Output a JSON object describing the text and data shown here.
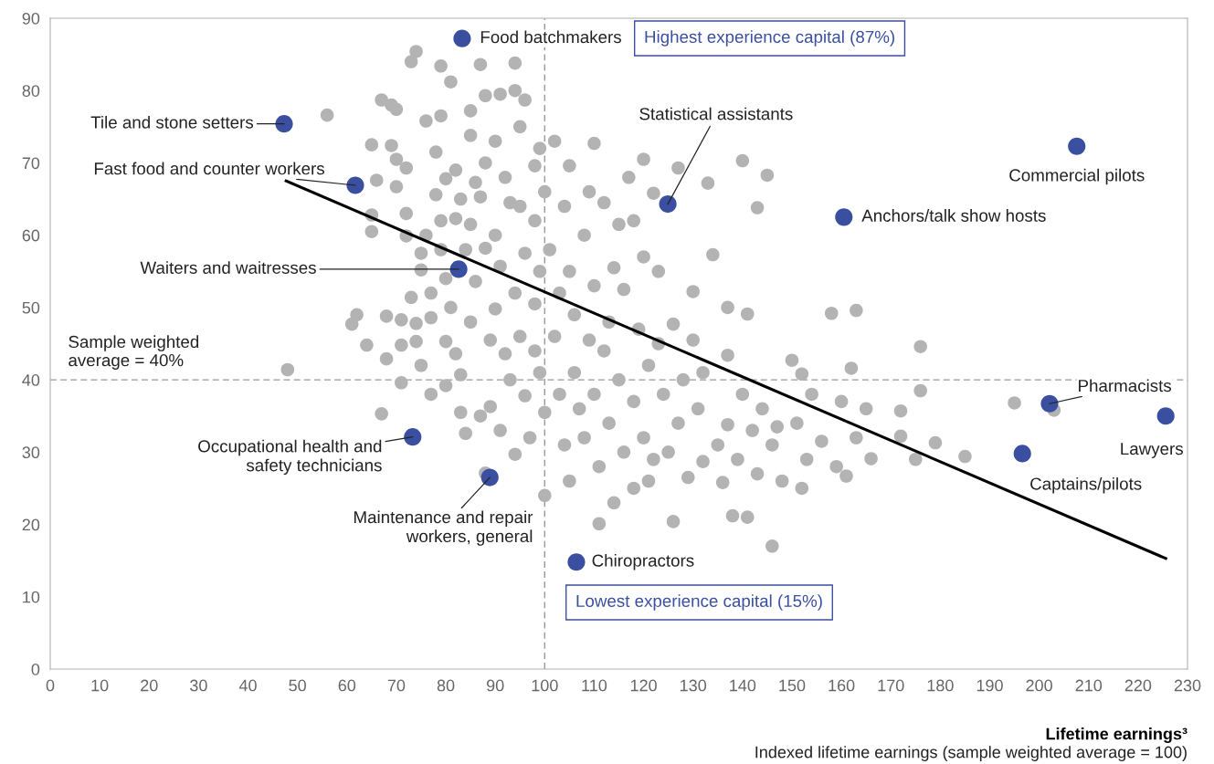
{
  "chart_data": {
    "type": "scatter",
    "xlabel": "Lifetime earnings³",
    "xlim": [
      0,
      230
    ],
    "xticks": [
      0,
      10,
      20,
      30,
      40,
      50,
      60,
      70,
      80,
      90,
      100,
      110,
      120,
      130,
      140,
      150,
      160,
      170,
      180,
      190,
      200,
      210,
      220,
      230
    ],
    "ylim": [
      0,
      90
    ],
    "yticks": [
      0,
      10,
      20,
      30,
      40,
      50,
      60,
      70,
      80,
      90
    ],
    "grid": false,
    "marker": "circle",
    "series": [
      {
        "color": "#b3b3b3",
        "x": [
          48,
          56,
          61,
          62,
          64,
          65,
          65,
          65,
          66,
          67,
          67,
          68,
          68,
          69,
          69,
          70,
          70,
          70,
          71,
          71,
          71,
          72,
          72,
          72,
          73,
          73,
          74,
          74,
          74,
          75,
          75,
          75,
          76,
          76,
          77,
          77,
          77,
          78,
          78,
          79,
          79,
          79,
          79,
          80,
          80,
          80,
          80,
          81,
          81,
          82,
          82,
          82,
          83,
          83,
          83,
          84,
          84,
          85,
          85,
          85,
          85,
          86,
          86,
          87,
          87,
          87,
          88,
          88,
          88,
          88,
          89,
          89,
          90,
          90,
          90,
          91,
          91,
          91,
          92,
          92,
          93,
          93,
          94,
          94,
          94,
          94,
          95,
          95,
          95,
          96,
          96,
          96,
          97,
          98,
          98,
          98,
          98,
          99,
          99,
          99,
          100,
          100,
          100,
          101,
          102,
          102,
          103,
          103,
          104,
          104,
          105,
          105,
          105,
          106,
          106,
          107,
          108,
          108,
          109,
          109,
          110,
          110,
          110,
          111,
          111,
          112,
          112,
          113,
          113,
          114,
          114,
          115,
          115,
          116,
          116,
          117,
          118,
          118,
          118,
          119,
          120,
          120,
          120,
          121,
          121,
          122,
          122,
          123,
          123,
          124,
          125,
          126,
          126,
          127,
          127,
          128,
          129,
          130,
          130,
          131,
          132,
          132,
          133,
          134,
          135,
          136,
          137,
          137,
          137,
          138,
          139,
          140,
          140,
          141,
          141,
          142,
          143,
          143,
          144,
          145,
          146,
          146,
          147,
          148,
          150,
          151,
          152,
          152,
          153,
          154,
          156,
          158,
          159,
          160,
          161,
          162,
          163,
          163,
          165,
          166,
          172,
          172,
          175,
          176,
          176,
          179,
          185,
          195,
          203
        ],
        "values": [
          41.4,
          76.6,
          47.7,
          49,
          44.8,
          72.5,
          62.8,
          60.5,
          67.6,
          78.7,
          35.3,
          48.8,
          42.9,
          72.4,
          78,
          77.4,
          70.5,
          66.7,
          48.3,
          44.8,
          39.6,
          69.3,
          59.9,
          63,
          51.4,
          84,
          85.4,
          47.8,
          45.3,
          42,
          57.5,
          55.2,
          75.8,
          60,
          48.6,
          38,
          52,
          71.5,
          65.6,
          76.5,
          83.4,
          62,
          58,
          67.8,
          54,
          45.3,
          39.2,
          81.2,
          50,
          69,
          62.3,
          43.6,
          65,
          40.7,
          35.5,
          58,
          32.6,
          77.2,
          73.8,
          61.5,
          48,
          67.3,
          53.6,
          83.6,
          65.3,
          35,
          79.3,
          70,
          58.2,
          27.1,
          45.5,
          36.3,
          73,
          60,
          49.8,
          79.5,
          55.7,
          33,
          68,
          43.6,
          64.5,
          40,
          83.8,
          80,
          52,
          29.7,
          75,
          64,
          46,
          78.7,
          57.5,
          37.8,
          32,
          69.6,
          62,
          50.5,
          44,
          72,
          55,
          41,
          66,
          35.5,
          24,
          58,
          73,
          46,
          52,
          38,
          64,
          31,
          69.6,
          55,
          26,
          49,
          41,
          36,
          60,
          32,
          66,
          45.5,
          72.7,
          53,
          38,
          20.1,
          28,
          64.5,
          44,
          48,
          34,
          55.5,
          23,
          61.5,
          40,
          52.5,
          30,
          68,
          62,
          37,
          25,
          47,
          70.5,
          57,
          32,
          42,
          26,
          65.8,
          29,
          55,
          45,
          38,
          30,
          47.7,
          20.4,
          69.3,
          34,
          40,
          26.5,
          52.2,
          45.5,
          36,
          41,
          28.7,
          67.2,
          57.3,
          31,
          25.8,
          50,
          43.4,
          33.8,
          21.2,
          29,
          70.3,
          38,
          49.1,
          21,
          33,
          63.8,
          27,
          36,
          68.3,
          17,
          31,
          33.5,
          26,
          42.7,
          34,
          40.8,
          25,
          29,
          38,
          31.5,
          49.2,
          28,
          37,
          26.7,
          41.6,
          49.6,
          32,
          36,
          29.1,
          32.2,
          35.7,
          29,
          44.6,
          38.5,
          31.3,
          29.4,
          36.8,
          35.8
        ]
      },
      {
        "color": "#3b4fa0",
        "x": [
          83.3,
          47.3,
          61.7,
          82.6,
          124.9,
          160.5,
          207.6,
          202.1,
          225.6,
          196.6,
          73.3,
          88.9,
          106.4
        ],
        "values": [
          87.2,
          75.4,
          66.9,
          55.3,
          64.3,
          62.5,
          72.3,
          36.7,
          35.0,
          29.8,
          32.1,
          26.5,
          14.8
        ]
      },
      {
        "type": "line",
        "color": "#000000",
        "line_style": "solid",
        "marker": "none",
        "x": [
          47.7,
          225.6
        ],
        "values": [
          67.5,
          15.3
        ]
      }
    ],
    "ref_lines": [
      {
        "axis": "x",
        "value": 100,
        "color": "#999999",
        "line_style": "dashed"
      },
      {
        "axis": "y",
        "value": 40,
        "label": "Sample weighted\naverage = 40%",
        "color": "#999999",
        "line_style": "dashed"
      }
    ],
    "annotations": [
      {
        "text": "Food batchmakers",
        "x": 83.3,
        "y": 87.2
      },
      {
        "text": "Tile and stone setters",
        "x": 47.3,
        "y": 75.4
      },
      {
        "text": "Fast food and counter workers",
        "x": 61.7,
        "y": 66.9
      },
      {
        "text": "Waiters and waitresses",
        "x": 82.6,
        "y": 55.3
      },
      {
        "text": "Statistical assistants",
        "x": 124.9,
        "y": 64.3
      },
      {
        "text": "Anchors/talk show hosts",
        "x": 160.5,
        "y": 62.5
      },
      {
        "text": "Commercial pilots",
        "x": 207.6,
        "y": 72.3
      },
      {
        "text": "Pharmacists",
        "x": 202.1,
        "y": 36.7
      },
      {
        "text": "Lawyers",
        "x": 225.6,
        "y": 35.0
      },
      {
        "text": "Captains/pilots",
        "x": 196.6,
        "y": 29.8
      },
      {
        "text": "Occupational health and\nsafety technicians",
        "x": 73.3,
        "y": 32.1
      },
      {
        "text": "Maintenance and repair\nworkers, general",
        "x": 88.9,
        "y": 26.5
      },
      {
        "text": "Chiropractors",
        "x": 106.4,
        "y": 14.8
      },
      "Highest experience capital (87%)",
      "Lowest experience capital (15%)",
      "Indexed lifetime earnings (sample weighted average = 100)"
    ]
  }
}
